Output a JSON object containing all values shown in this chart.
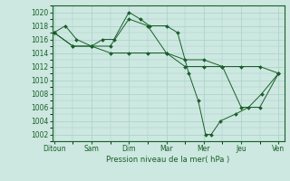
{
  "xlabel": "Pression niveau de la mer( hPa )",
  "background_color": "#cce8e0",
  "line_color": "#1a5e2a",
  "grid_color": "#aacfc8",
  "xtick_labels": [
    "Ditoun",
    "Sam",
    "Dim",
    "Mar",
    "Mer",
    "Jeu",
    "Ven"
  ],
  "xtick_positions": [
    0,
    1,
    2,
    3,
    4,
    5,
    6
  ],
  "ylim": [
    1001,
    1021
  ],
  "yticks": [
    1002,
    1004,
    1006,
    1008,
    1010,
    1012,
    1014,
    1016,
    1018,
    1020
  ],
  "series": [
    {
      "x": [
        0.0,
        0.3,
        0.6,
        1.0,
        1.3,
        1.6,
        2.0,
        2.3,
        2.55,
        3.0,
        3.3,
        3.6,
        3.85,
        4.05,
        4.2,
        4.45,
        4.85,
        5.2,
        5.55,
        6.0
      ],
      "y": [
        1017,
        1018,
        1016,
        1015,
        1016,
        1016,
        1020,
        1019,
        1018,
        1018,
        1017,
        1011,
        1007,
        1002,
        1002,
        1004,
        1005,
        1006,
        1008,
        1011
      ]
    },
    {
      "x": [
        0.0,
        0.5,
        1.0,
        1.5,
        2.0,
        2.5,
        3.0,
        3.5,
        4.0,
        4.5,
        5.0,
        5.5,
        6.0
      ],
      "y": [
        1017,
        1015,
        1015,
        1015,
        1019,
        1018,
        1014,
        1012,
        1012,
        1012,
        1006,
        1006,
        1011
      ]
    },
    {
      "x": [
        0.0,
        0.5,
        1.0,
        1.5,
        2.0,
        2.5,
        3.0,
        3.5,
        4.0,
        4.5,
        5.0,
        5.5,
        6.0
      ],
      "y": [
        1017,
        1015,
        1015,
        1014,
        1014,
        1014,
        1014,
        1013,
        1013,
        1012,
        1012,
        1012,
        1011
      ]
    }
  ]
}
